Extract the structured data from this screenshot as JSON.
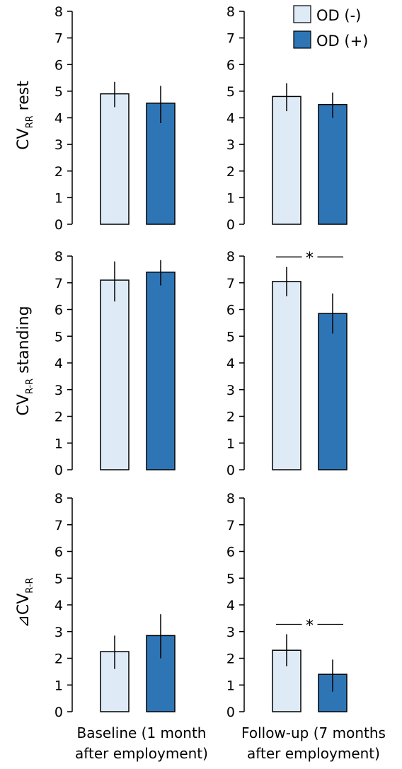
{
  "colors": {
    "od_minus": "#deebf7",
    "od_plus": "#2e75b6",
    "axis": "#000000"
  },
  "legend": [
    {
      "label": "OD (-)",
      "color": "#deebf7"
    },
    {
      "label": "OD (+)",
      "color": "#2e75b6"
    }
  ],
  "rows": [
    {
      "label_main": "CV",
      "label_sub": "RR",
      "label_suffix": " rest",
      "label_prefix": ""
    },
    {
      "label_main": "CV",
      "label_sub": "R-R",
      "label_suffix": " standing",
      "label_prefix": ""
    },
    {
      "label_main": "CV",
      "label_sub": "R-R",
      "label_suffix": "",
      "label_prefix": "⊿"
    }
  ],
  "columns": [
    {
      "label_line1": "Baseline (1 month",
      "label_line2": "after employment)"
    },
    {
      "label_line1": "Follow-up (7 months",
      "label_line2": "after employment)"
    }
  ],
  "chart_data": [
    {
      "type": "bar",
      "row": 0,
      "col": 0,
      "ylim": [
        0,
        8
      ],
      "yticks": [
        "0",
        "1",
        "2",
        "3",
        "4",
        "5",
        "6",
        "7",
        "8"
      ],
      "series": [
        {
          "name": "OD (-)",
          "value": 4.9,
          "err": [
            4.4,
            5.35
          ]
        },
        {
          "name": "OD (+)",
          "value": 4.55,
          "err": [
            3.8,
            5.2
          ]
        }
      ],
      "significance": ""
    },
    {
      "type": "bar",
      "row": 0,
      "col": 1,
      "ylim": [
        0,
        8
      ],
      "yticks": [
        "0",
        "1",
        "2",
        "3",
        "4",
        "5",
        "6",
        "7",
        "8"
      ],
      "series": [
        {
          "name": "OD (-)",
          "value": 4.8,
          "err": [
            4.25,
            5.3
          ]
        },
        {
          "name": "OD (+)",
          "value": 4.5,
          "err": [
            4.0,
            4.95
          ]
        }
      ],
      "significance": ""
    },
    {
      "type": "bar",
      "row": 1,
      "col": 0,
      "ylim": [
        0,
        8
      ],
      "yticks": [
        "0",
        "1",
        "2",
        "3",
        "4",
        "5",
        "6",
        "7",
        "8"
      ],
      "series": [
        {
          "name": "OD (-)",
          "value": 7.1,
          "err": [
            6.3,
            7.8
          ]
        },
        {
          "name": "OD (+)",
          "value": 7.4,
          "err": [
            6.9,
            7.85
          ]
        }
      ],
      "significance": ""
    },
    {
      "type": "bar",
      "row": 1,
      "col": 1,
      "ylim": [
        0,
        8
      ],
      "yticks": [
        "0",
        "1",
        "2",
        "3",
        "4",
        "5",
        "6",
        "7",
        "8"
      ],
      "series": [
        {
          "name": "OD (-)",
          "value": 7.05,
          "err": [
            6.5,
            7.6
          ]
        },
        {
          "name": "OD (+)",
          "value": 5.85,
          "err": [
            5.1,
            6.6
          ]
        }
      ],
      "significance": "*"
    },
    {
      "type": "bar",
      "row": 2,
      "col": 0,
      "ylim": [
        0,
        8
      ],
      "yticks": [
        "0",
        "1",
        "2",
        "3",
        "4",
        "5",
        "6",
        "7",
        "8"
      ],
      "series": [
        {
          "name": "OD (-)",
          "value": 2.25,
          "err": [
            1.6,
            2.85
          ]
        },
        {
          "name": "OD (+)",
          "value": 2.85,
          "err": [
            2.0,
            3.65
          ]
        }
      ],
      "significance": ""
    },
    {
      "type": "bar",
      "row": 2,
      "col": 1,
      "ylim": [
        0,
        8
      ],
      "yticks": [
        "0",
        "1",
        "2",
        "3",
        "4",
        "5",
        "6",
        "7",
        "8"
      ],
      "series": [
        {
          "name": "OD (-)",
          "value": 2.3,
          "err": [
            1.7,
            2.9
          ]
        },
        {
          "name": "OD (+)",
          "value": 1.4,
          "err": [
            0.75,
            1.95
          ]
        }
      ],
      "significance": "*"
    }
  ]
}
